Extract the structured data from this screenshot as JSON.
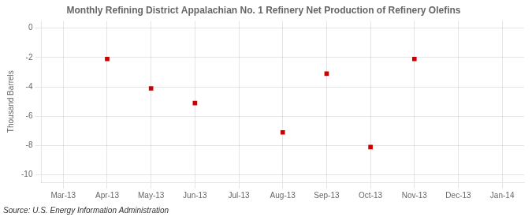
{
  "chart_data": {
    "type": "scatter",
    "title": "Monthly Refining District Appalachian No. 1 Refinery Net Production of Refinery Olefins",
    "y_label": "Thousand Barrels",
    "annotations": [
      "Source: U.S. Energy Information Administration"
    ],
    "categories": [
      "Mar-13",
      "Apr-13",
      "May-13",
      "Jun-13",
      "Jul-13",
      "Aug-13",
      "Sep-13",
      "Oct-13",
      "Nov-13",
      "Dec-13",
      "Jan-14"
    ],
    "values": [
      null,
      -2.1,
      -4.1,
      -5.1,
      null,
      -7.1,
      -3.1,
      -8.1,
      -2.1,
      null,
      null
    ],
    "color": "#cc0000",
    "marker": "square",
    "ylim": [
      -10.5,
      0.5
    ],
    "yticks": [
      0,
      -2,
      -4,
      -6,
      -8,
      -10
    ],
    "grid": true
  }
}
